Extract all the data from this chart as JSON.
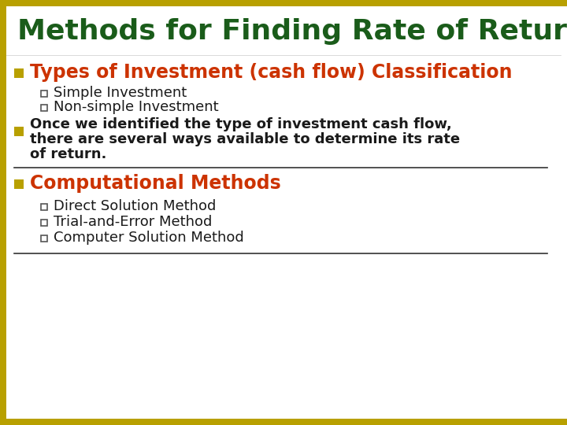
{
  "title": "Methods for Finding Rate of Return",
  "title_color": "#1a5c1a",
  "title_fontsize": 26,
  "background_color": "#ffffff",
  "border_top_color": "#b8a000",
  "border_left_color": "#b8a000",
  "border_bottom_color": "#b8a000",
  "bullet_square_color": "#b8a000",
  "section1_header": "Types of Investment (cash flow) Classification",
  "section1_color": "#cc3300",
  "section1_items": [
    "Simple Investment",
    "Non-simple Investment"
  ],
  "section2_line1": "Once we identified the type of investment cash flow,",
  "section2_line2": "there are several ways available to determine its rate",
  "section2_line3": "of return.",
  "section2_color": "#1a1a1a",
  "section3_header": "Computational Methods",
  "section3_color": "#cc3300",
  "section3_items": [
    "Direct Solution Method",
    "Trial-and-Error Method",
    "Computer Solution Method"
  ],
  "item_color": "#1a1a1a",
  "divider_color": "#333333",
  "sub_bullet_color": "#555555",
  "sub_bullet_fill": "#b8a000"
}
